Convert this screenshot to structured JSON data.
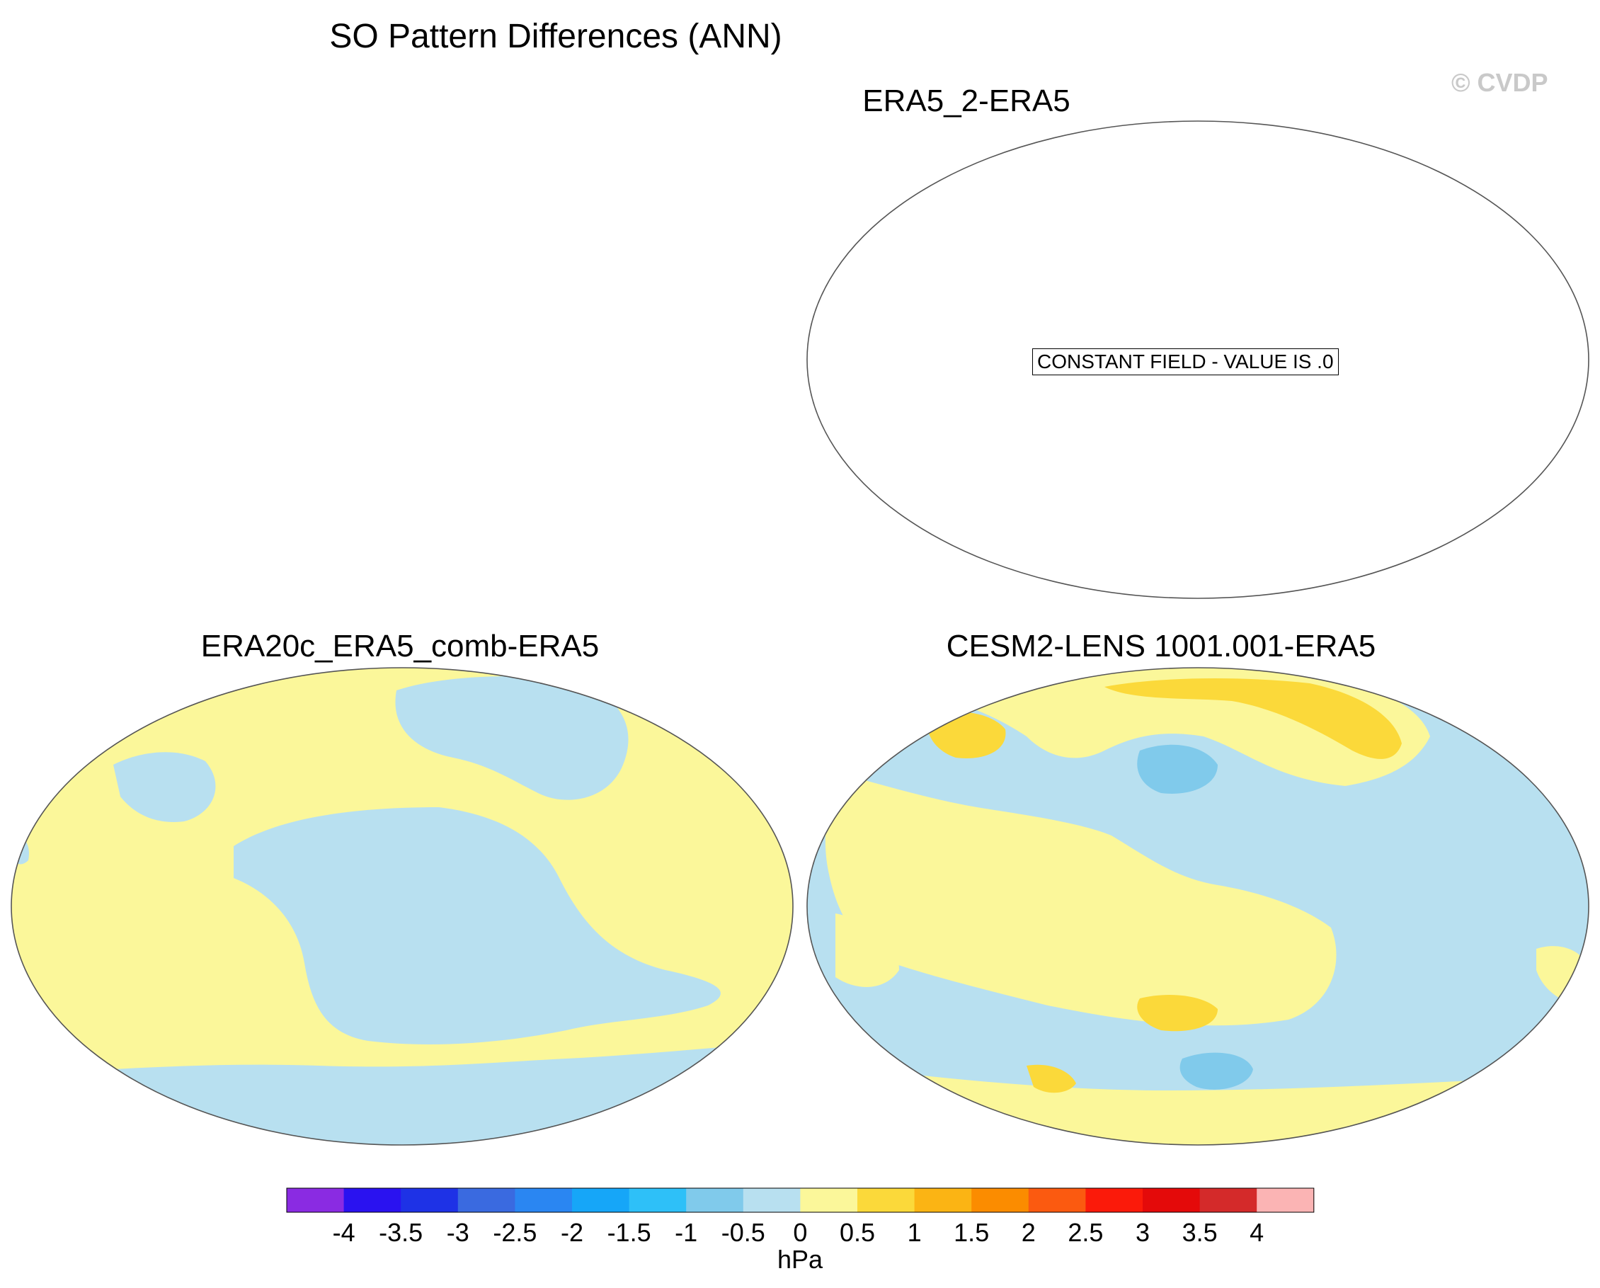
{
  "figure": {
    "title": "SO Pattern Differences (ANN)",
    "credit": "© CVDP"
  },
  "panels": [
    {
      "title": "ERA5_2-ERA5",
      "note": "CONSTANT FIELD - VALUE IS .0",
      "fill": "none"
    },
    {
      "title": "ERA20c_ERA5_comb-ERA5",
      "fill": "pattern"
    },
    {
      "title": "CESM2-LENS 1001.001-ERA5",
      "fill": "pattern"
    }
  ],
  "colorbar": {
    "unit": "hPa",
    "labels": [
      "-4",
      "-3.5",
      "-3",
      "-2.5",
      "-2",
      "-1.5",
      "-1",
      "-0.5",
      "0",
      "0.5",
      "1",
      "1.5",
      "2",
      "2.5",
      "3",
      "3.5",
      "4"
    ],
    "colors": [
      "#8a2be2",
      "#2a12f0",
      "#1e32e6",
      "#3a6ae0",
      "#2a86f2",
      "#16a6f8",
      "#2ec0f8",
      "#80caeb",
      "#b8e0f0",
      "#fbf79a",
      "#fbd93a",
      "#fbb414",
      "#fb8c00",
      "#fb5a10",
      "#fb1a0a",
      "#e40a0a",
      "#d42a2a",
      "#fbb4b4"
    ]
  },
  "map_colors": {
    "negative_small": "#b8e0f0",
    "negative_mid": "#80caeb",
    "positive_small": "#fbf79a",
    "positive_mid": "#fbd93a"
  }
}
